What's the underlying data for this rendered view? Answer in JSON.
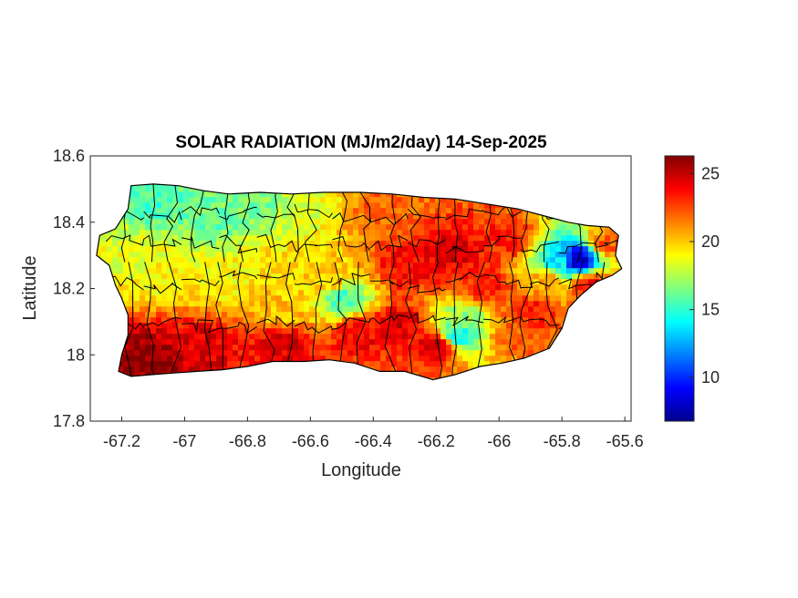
{
  "chart_data": {
    "type": "heatmap",
    "title": "SOLAR RADIATION (MJ/m2/day) 14-Sep-2025",
    "xlabel": "Longitude",
    "ylabel": "Latitude",
    "xlim": [
      -67.3,
      -65.58
    ],
    "ylim": [
      17.8,
      18.6
    ],
    "xticks": [
      -67.2,
      -67,
      -66.8,
      -66.6,
      -66.4,
      -66.2,
      -66,
      -65.8,
      -65.6
    ],
    "yticks": [
      17.8,
      18,
      18.2,
      18.4,
      18.6
    ],
    "xtick_labels": [
      "-67.2",
      "-67",
      "-66.8",
      "-66.6",
      "-66.4",
      "-66.2",
      "-66",
      "-65.8",
      "-65.6"
    ],
    "ytick_labels": [
      "17.8",
      "18",
      "18.2",
      "18.4",
      "18.6"
    ],
    "colorbar": {
      "colormap": "jet",
      "range": [
        6.8,
        26.3
      ],
      "ticks": [
        10,
        15,
        20,
        25
      ],
      "tick_labels": [
        "10",
        "15",
        "20",
        "25"
      ]
    },
    "region": "Puerto Rico (municipality boundaries)",
    "outline": [
      [
        -67.17,
        18.51
      ],
      [
        -67.1,
        18.515
      ],
      [
        -67.02,
        18.51
      ],
      [
        -66.94,
        18.495
      ],
      [
        -66.86,
        18.485
      ],
      [
        -66.76,
        18.49
      ],
      [
        -66.66,
        18.485
      ],
      [
        -66.56,
        18.49
      ],
      [
        -66.44,
        18.49
      ],
      [
        -66.34,
        18.485
      ],
      [
        -66.24,
        18.475
      ],
      [
        -66.14,
        18.47
      ],
      [
        -66.04,
        18.455
      ],
      [
        -65.94,
        18.44
      ],
      [
        -65.86,
        18.42
      ],
      [
        -65.78,
        18.4
      ],
      [
        -65.72,
        18.39
      ],
      [
        -65.65,
        18.385
      ],
      [
        -65.62,
        18.36
      ],
      [
        -65.63,
        18.3
      ],
      [
        -65.61,
        18.26
      ],
      [
        -65.64,
        18.24
      ],
      [
        -65.69,
        18.22
      ],
      [
        -65.74,
        18.18
      ],
      [
        -65.78,
        18.14
      ],
      [
        -65.8,
        18.08
      ],
      [
        -65.84,
        18.02
      ],
      [
        -65.92,
        17.99
      ],
      [
        -65.99,
        17.975
      ],
      [
        -66.06,
        17.965
      ],
      [
        -66.14,
        17.94
      ],
      [
        -66.21,
        17.925
      ],
      [
        -66.3,
        17.95
      ],
      [
        -66.38,
        17.95
      ],
      [
        -66.46,
        17.975
      ],
      [
        -66.54,
        17.985
      ],
      [
        -66.62,
        17.98
      ],
      [
        -66.72,
        17.98
      ],
      [
        -66.8,
        17.965
      ],
      [
        -66.88,
        17.955
      ],
      [
        -66.96,
        17.95
      ],
      [
        -67.04,
        17.945
      ],
      [
        -67.11,
        17.94
      ],
      [
        -67.17,
        17.935
      ],
      [
        -67.21,
        17.95
      ],
      [
        -67.2,
        18.0
      ],
      [
        -67.18,
        18.06
      ],
      [
        -67.18,
        18.12
      ],
      [
        -67.2,
        18.17
      ],
      [
        -67.22,
        18.21
      ],
      [
        -67.24,
        18.27
      ],
      [
        -67.28,
        18.3
      ],
      [
        -67.27,
        18.36
      ],
      [
        -67.22,
        18.38
      ],
      [
        -67.18,
        18.44
      ],
      [
        -67.17,
        18.51
      ]
    ],
    "value_anchors": [
      {
        "lon": -67.12,
        "lat": 17.98,
        "value": 26.0
      },
      {
        "lon": -66.95,
        "lat": 18.02,
        "value": 24.5
      },
      {
        "lon": -66.7,
        "lat": 18.03,
        "value": 24.5
      },
      {
        "lon": -66.45,
        "lat": 18.06,
        "value": 24.0
      },
      {
        "lon": -66.32,
        "lat": 18.08,
        "value": 24.5
      },
      {
        "lon": -66.2,
        "lat": 18.02,
        "value": 25.0
      },
      {
        "lon": -65.96,
        "lat": 18.05,
        "value": 22.0
      },
      {
        "lon": -65.9,
        "lat": 18.12,
        "value": 23.5
      },
      {
        "lon": -66.3,
        "lat": 18.26,
        "value": 24.0
      },
      {
        "lon": -66.15,
        "lat": 18.3,
        "value": 24.5
      },
      {
        "lon": -65.98,
        "lat": 18.34,
        "value": 23.5
      },
      {
        "lon": -66.05,
        "lat": 18.2,
        "value": 23.5
      },
      {
        "lon": -66.38,
        "lat": 18.42,
        "value": 22.0
      },
      {
        "lon": -65.72,
        "lat": 18.2,
        "value": 23.5
      },
      {
        "lon": -65.66,
        "lat": 18.33,
        "value": 22.0
      },
      {
        "lon": -67.1,
        "lat": 18.45,
        "value": 15.5
      },
      {
        "lon": -66.93,
        "lat": 18.4,
        "value": 16.0
      },
      {
        "lon": -66.78,
        "lat": 18.44,
        "value": 16.5
      },
      {
        "lon": -66.62,
        "lat": 18.43,
        "value": 18.5
      },
      {
        "lon": -67.18,
        "lat": 18.3,
        "value": 18.5
      },
      {
        "lon": -67.08,
        "lat": 18.25,
        "value": 19.0
      },
      {
        "lon": -66.88,
        "lat": 18.22,
        "value": 19.0
      },
      {
        "lon": -66.72,
        "lat": 18.26,
        "value": 19.5
      },
      {
        "lon": -66.55,
        "lat": 18.22,
        "value": 20.0
      },
      {
        "lon": -66.5,
        "lat": 18.16,
        "value": 15.5
      },
      {
        "lon": -66.7,
        "lat": 18.12,
        "value": 20.0
      },
      {
        "lon": -66.12,
        "lat": 18.1,
        "value": 17.0
      },
      {
        "lon": -66.14,
        "lat": 18.05,
        "value": 14.0
      },
      {
        "lon": -65.82,
        "lat": 18.27,
        "value": 14.0
      },
      {
        "lon": -65.76,
        "lat": 18.28,
        "value": 8.0
      },
      {
        "lon": -65.86,
        "lat": 18.22,
        "value": 20.5
      }
    ]
  }
}
